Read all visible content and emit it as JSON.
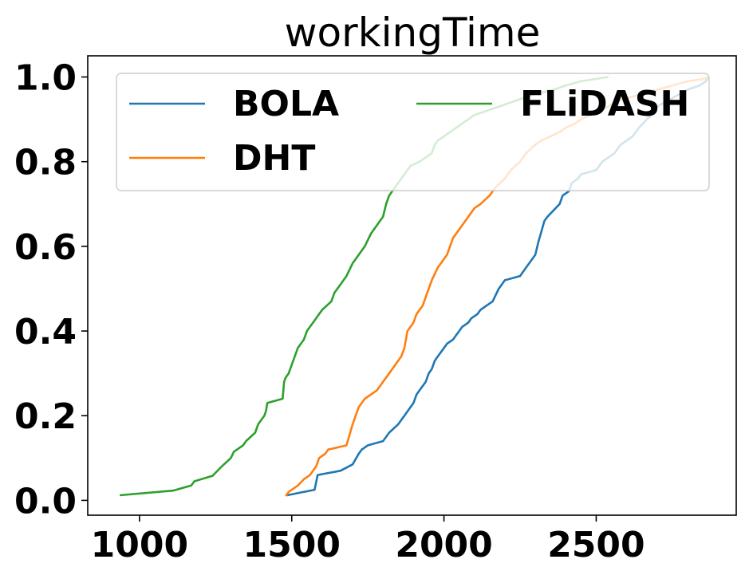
{
  "chart_data": {
    "type": "line",
    "title": "workingTime",
    "xlabel": "",
    "ylabel": "",
    "xlim": [
      830,
      2960
    ],
    "ylim": [
      -0.035,
      1.05
    ],
    "xticks": [
      1000,
      1500,
      2000,
      2500
    ],
    "yticks": [
      0.0,
      0.2,
      0.4,
      0.6,
      0.8,
      1.0
    ],
    "xtick_labels": [
      "1000",
      "1500",
      "2000",
      "2500"
    ],
    "ytick_labels": [
      "0.0",
      "0.2",
      "0.4",
      "0.6",
      "0.8",
      "1.0"
    ],
    "grid": false,
    "legend": {
      "placement": "top",
      "columns": 2
    },
    "series": [
      {
        "name": "BOLA",
        "color": "#1f77b4",
        "x": [
          1485,
          1575,
          1585,
          1660,
          1700,
          1720,
          1730,
          1750,
          1800,
          1820,
          1850,
          1870,
          1880,
          1900,
          1910,
          1920,
          1940,
          1950,
          1960,
          1970,
          1980,
          2000,
          2010,
          2030,
          2040,
          2050,
          2060,
          2080,
          2090,
          2110,
          2120,
          2140,
          2160,
          2180,
          2190,
          2200,
          2250,
          2270,
          2300,
          2310,
          2330,
          2340,
          2380,
          2390,
          2410,
          2420,
          2440,
          2450,
          2500,
          2520,
          2560,
          2580,
          2620,
          2640,
          2680,
          2700,
          2750,
          2800,
          2840,
          2860,
          2870
        ],
        "y": [
          0.012,
          0.025,
          0.06,
          0.07,
          0.085,
          0.11,
          0.12,
          0.13,
          0.14,
          0.16,
          0.18,
          0.2,
          0.21,
          0.23,
          0.25,
          0.26,
          0.28,
          0.3,
          0.31,
          0.33,
          0.34,
          0.36,
          0.37,
          0.38,
          0.39,
          0.4,
          0.41,
          0.42,
          0.43,
          0.44,
          0.45,
          0.46,
          0.47,
          0.5,
          0.51,
          0.52,
          0.53,
          0.55,
          0.58,
          0.61,
          0.66,
          0.67,
          0.7,
          0.72,
          0.73,
          0.75,
          0.76,
          0.77,
          0.78,
          0.8,
          0.82,
          0.84,
          0.86,
          0.88,
          0.91,
          0.93,
          0.95,
          0.97,
          0.98,
          0.99,
          1.0
        ]
      },
      {
        "name": "DHT",
        "color": "#ff7f0e",
        "x": [
          1480,
          1490,
          1520,
          1540,
          1560,
          1580,
          1590,
          1610,
          1620,
          1650,
          1680,
          1700,
          1720,
          1740,
          1780,
          1800,
          1820,
          1840,
          1860,
          1870,
          1880,
          1900,
          1910,
          1930,
          1940,
          1950,
          1960,
          1980,
          1990,
          2010,
          2020,
          2030,
          2050,
          2060,
          2080,
          2100,
          2120,
          2150,
          2170,
          2200,
          2220,
          2250,
          2270,
          2300,
          2320,
          2350,
          2380,
          2400,
          2430,
          2450,
          2480,
          2500,
          2540,
          2560,
          2600,
          2650,
          2700,
          2750,
          2800,
          2850,
          2870
        ],
        "y": [
          0.01,
          0.02,
          0.035,
          0.05,
          0.06,
          0.08,
          0.1,
          0.11,
          0.12,
          0.125,
          0.13,
          0.18,
          0.22,
          0.24,
          0.26,
          0.28,
          0.3,
          0.32,
          0.34,
          0.36,
          0.4,
          0.42,
          0.44,
          0.46,
          0.48,
          0.5,
          0.52,
          0.55,
          0.56,
          0.58,
          0.6,
          0.62,
          0.64,
          0.65,
          0.67,
          0.69,
          0.7,
          0.72,
          0.74,
          0.76,
          0.78,
          0.8,
          0.82,
          0.84,
          0.85,
          0.86,
          0.87,
          0.88,
          0.89,
          0.9,
          0.91,
          0.92,
          0.93,
          0.94,
          0.95,
          0.96,
          0.97,
          0.98,
          0.99,
          0.995,
          1.0
        ]
      },
      {
        "name": "FLiDASH",
        "color": "#2ca02c",
        "x": [
          935,
          1110,
          1170,
          1180,
          1240,
          1270,
          1300,
          1310,
          1340,
          1350,
          1380,
          1390,
          1410,
          1415,
          1420,
          1470,
          1475,
          1480,
          1490,
          1500,
          1520,
          1540,
          1550,
          1560,
          1570,
          1590,
          1600,
          1630,
          1640,
          1650,
          1680,
          1700,
          1720,
          1740,
          1760,
          1780,
          1790,
          1800,
          1810,
          1820,
          1840,
          1860,
          1880,
          1890,
          1920,
          1940,
          1960,
          1970,
          1980,
          2000,
          2020,
          2040,
          2060,
          2080,
          2100,
          2140,
          2180,
          2220,
          2260,
          2300,
          2360,
          2400,
          2450,
          2540
        ],
        "y": [
          0.012,
          0.023,
          0.035,
          0.045,
          0.058,
          0.08,
          0.1,
          0.115,
          0.13,
          0.14,
          0.16,
          0.18,
          0.2,
          0.21,
          0.23,
          0.24,
          0.28,
          0.29,
          0.3,
          0.32,
          0.36,
          0.38,
          0.4,
          0.41,
          0.42,
          0.44,
          0.45,
          0.47,
          0.49,
          0.5,
          0.53,
          0.56,
          0.58,
          0.6,
          0.63,
          0.65,
          0.66,
          0.67,
          0.7,
          0.72,
          0.74,
          0.76,
          0.78,
          0.79,
          0.8,
          0.81,
          0.82,
          0.84,
          0.85,
          0.86,
          0.87,
          0.88,
          0.89,
          0.9,
          0.91,
          0.92,
          0.93,
          0.94,
          0.95,
          0.96,
          0.97,
          0.98,
          0.99,
          1.0
        ]
      }
    ]
  }
}
